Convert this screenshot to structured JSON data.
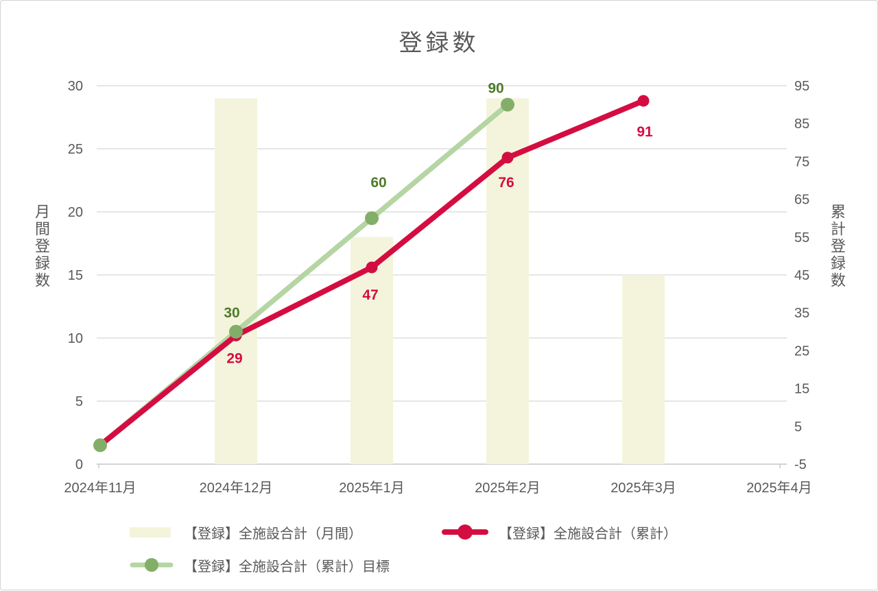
{
  "chart_data": {
    "type": "combo",
    "title": "登録数",
    "categories": [
      "2024年11月",
      "2024年12月",
      "2025年1月",
      "2025年2月",
      "2025年3月",
      "2025年4月"
    ],
    "left_axis": {
      "title": "月間登録数",
      "min": 0,
      "max": 30,
      "ticks": [
        0,
        5,
        10,
        15,
        20,
        25,
        30
      ]
    },
    "right_axis": {
      "title": "累計登録数",
      "min": -5,
      "max": 95,
      "ticks": [
        -5,
        5,
        15,
        25,
        35,
        45,
        55,
        65,
        75,
        85,
        95
      ]
    },
    "gridlines": true,
    "legend_position": "bottom",
    "text_color": "#595959",
    "gridline_color": "#D8D8D8",
    "axis_line_color": "#C6C6C6",
    "series": [
      {
        "name": "【登録】全施設合計（月間）",
        "type": "bar",
        "axis": "left",
        "color": "#F4F4DC",
        "points": [
          {
            "x": 1,
            "y": 29
          },
          {
            "x": 2,
            "y": 18
          },
          {
            "x": 3,
            "y": 29
          },
          {
            "x": 4,
            "y": 15
          }
        ]
      },
      {
        "name": "【登録】全施設合計（累計）",
        "type": "line",
        "axis": "right",
        "color": "#D40D41",
        "marker_color": "#D40D41",
        "label_color": "#D40D41",
        "stroke_width": 8,
        "marker_radius": 8.5,
        "points": [
          {
            "x": 0,
            "y": 0
          },
          {
            "x": 1,
            "y": 29,
            "label": "29",
            "label_offset": [
              -2,
              33
            ]
          },
          {
            "x": 2,
            "y": 47,
            "label": "47",
            "label_offset": [
              -2,
              40
            ]
          },
          {
            "x": 3,
            "y": 76,
            "label": "76",
            "label_offset": [
              -2,
              36
            ]
          },
          {
            "x": 4,
            "y": 91,
            "label": "91",
            "label_offset": [
              2,
              45
            ]
          }
        ]
      },
      {
        "name": "【登録】全施設合計（累計）目標",
        "type": "line",
        "axis": "right",
        "color": "#B5D5A3",
        "marker_color": "#83AE67",
        "label_color": "#4E7B29",
        "stroke_width": 7.5,
        "marker_radius": 10,
        "points": [
          {
            "x": 0,
            "y": 0
          },
          {
            "x": 1,
            "y": 30,
            "label": "30",
            "label_offset": [
              -6,
              -28
            ]
          },
          {
            "x": 2,
            "y": 60,
            "label": "60",
            "label_offset": [
              10,
              -52
            ]
          },
          {
            "x": 3,
            "y": 90,
            "label": "90",
            "label_offset": [
              -17,
              -24
            ]
          }
        ]
      }
    ]
  }
}
